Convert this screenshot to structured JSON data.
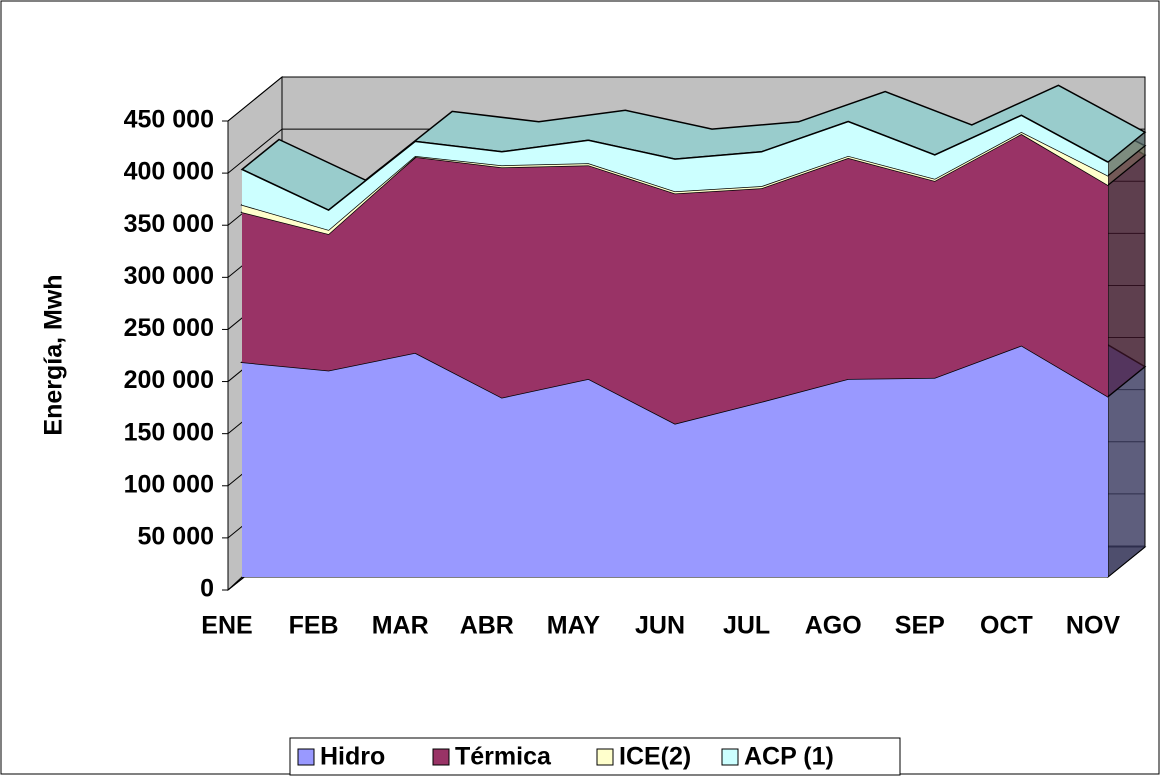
{
  "chart_data": {
    "type": "area3d",
    "y_label": "Energía, Mwh",
    "categories": [
      "ENE",
      "FEB",
      "MAR",
      "ABR",
      "MAY",
      "JUN",
      "JUL",
      "AGO",
      "SEP",
      "OCT",
      "NOV"
    ],
    "series": [
      {
        "name": "Hidro",
        "color": "#9999ff",
        "values": [
          206000,
          198000,
          215000,
          172000,
          190000,
          147000,
          168000,
          190000,
          191000,
          222000,
          173000
        ]
      },
      {
        "name": "Térmica",
        "color": "#993366",
        "values": [
          144000,
          131000,
          188000,
          221000,
          205000,
          221000,
          205000,
          212000,
          189000,
          203000,
          203000
        ]
      },
      {
        "name": "ICE(2)",
        "color": "#ffffcc",
        "values": [
          7000,
          4000,
          1000,
          2000,
          2000,
          2000,
          2000,
          2000,
          2000,
          2000,
          9000
        ]
      },
      {
        "name": "ACP (1)",
        "color": "#ccffff",
        "values": [
          34000,
          19000,
          14000,
          13000,
          22000,
          31000,
          33000,
          33000,
          23000,
          16000,
          13000
        ]
      }
    ],
    "ylim": [
      0,
      450000
    ],
    "yticks": [
      0,
      {
        "value": 50000,
        "label": "50 000"
      },
      {
        "value": 100000,
        "label": "100 000"
      },
      {
        "value": 150000,
        "label": "150 000"
      },
      {
        "value": 200000,
        "label": "200 000"
      },
      {
        "value": 250000,
        "label": "250 000"
      },
      {
        "value": 300000,
        "label": "300 000"
      },
      {
        "value": 350000,
        "label": "350 000"
      },
      {
        "value": 400000,
        "label": "400 000"
      },
      {
        "value": 450000,
        "label": "450 000"
      }
    ],
    "grid": true
  }
}
